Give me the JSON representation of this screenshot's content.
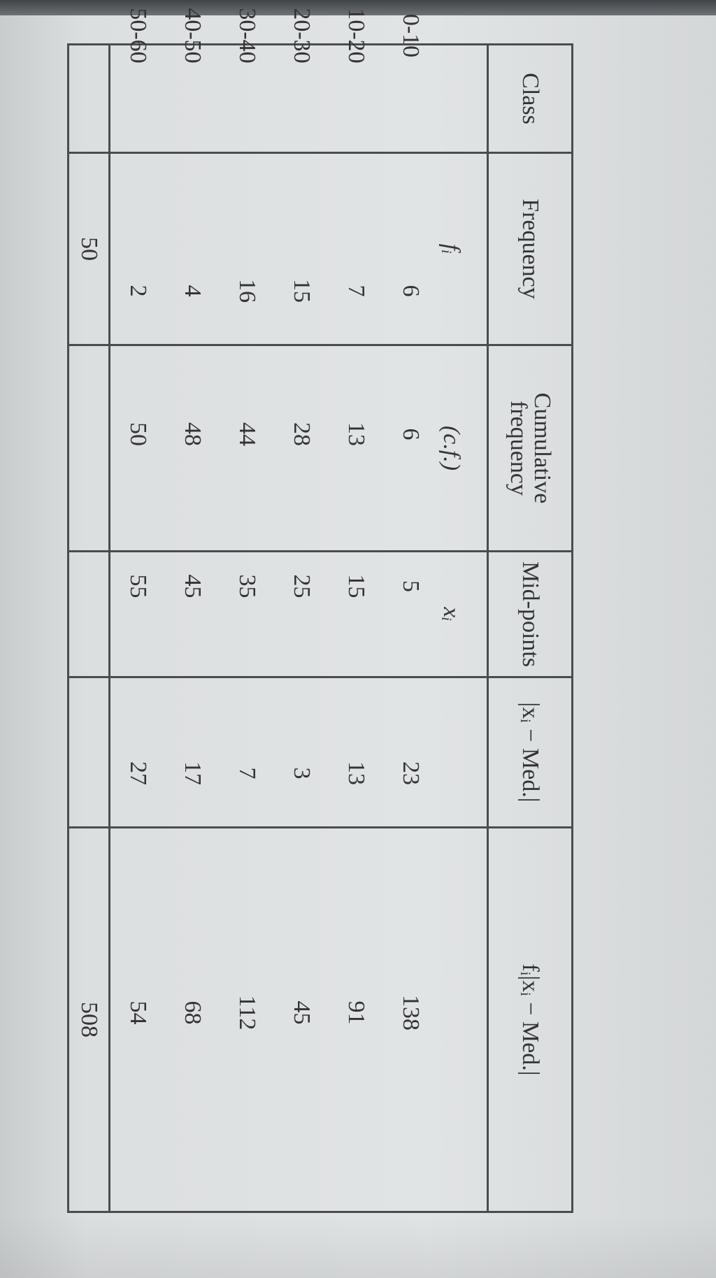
{
  "table": {
    "headers": [
      "Class",
      "Frequency",
      "Cumulative frequency",
      "Mid-points",
      "|xᵢ − Med.|",
      "fᵢ|xᵢ − Med.|"
    ],
    "sublabels": [
      "",
      "fᵢ",
      "(c.f.)",
      "xᵢ",
      "",
      ""
    ],
    "rows": [
      [
        "0-10",
        "6",
        "6",
        "5",
        "23",
        "138"
      ],
      [
        "10-20",
        "7",
        "13",
        "15",
        "13",
        "91"
      ],
      [
        "20-30",
        "15",
        "28",
        "25",
        "3",
        "45"
      ],
      [
        "30-40",
        "16",
        "44",
        "35",
        "7",
        "112"
      ],
      [
        "40-50",
        "4",
        "48",
        "45",
        "17",
        "68"
      ],
      [
        "50-60",
        "2",
        "50",
        "55",
        "27",
        "54"
      ]
    ],
    "totals": [
      "",
      "50",
      "",
      "",
      "",
      "508"
    ]
  }
}
